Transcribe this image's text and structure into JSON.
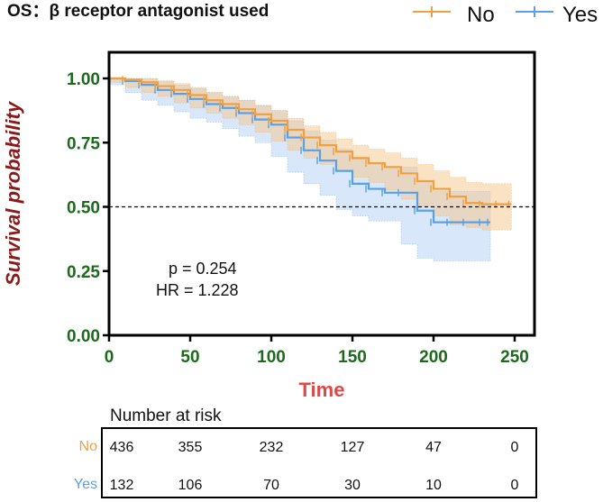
{
  "chart_data": {
    "type": "line",
    "subtype": "kaplan-meier",
    "legend_title": "OS：β receptor antagonist used",
    "xlabel": "Time",
    "ylabel": "Survival probability",
    "xlim": [
      0,
      255
    ],
    "ylim": [
      0,
      1.05
    ],
    "x_ticks": [
      0,
      50,
      100,
      150,
      200,
      250
    ],
    "x_tick_labels": [
      "0",
      "50",
      "100",
      "150",
      "200",
      "250"
    ],
    "y_ticks": [
      0,
      0.25,
      0.5,
      0.75,
      1.0
    ],
    "y_tick_labels": [
      "0.00",
      "0.25",
      "0.50",
      "0.75",
      "1.00"
    ],
    "reference_line": 0.5,
    "annotations": [
      "p = 0.254",
      "HR = 1.228"
    ],
    "colors": {
      "No": "#f0a040",
      "Yes": "#5b9fe6",
      "axis_text": "#1a6b1a",
      "ylabel": "#8b1a1a",
      "xlabel": "#e04848"
    },
    "series": [
      {
        "name": "No",
        "color": "#f0a040",
        "x": [
          0,
          10,
          20,
          30,
          40,
          50,
          60,
          70,
          80,
          90,
          100,
          110,
          120,
          130,
          140,
          150,
          160,
          170,
          180,
          190,
          200,
          210,
          220,
          230,
          240,
          248
        ],
        "y": [
          1.0,
          0.995,
          0.985,
          0.97,
          0.955,
          0.935,
          0.915,
          0.9,
          0.88,
          0.86,
          0.835,
          0.8,
          0.77,
          0.74,
          0.715,
          0.69,
          0.67,
          0.655,
          0.63,
          0.6,
          0.57,
          0.54,
          0.515,
          0.51,
          0.51,
          0.51
        ],
        "ci_upper": [
          1.0,
          1.0,
          1.0,
          0.99,
          0.98,
          0.965,
          0.945,
          0.93,
          0.915,
          0.895,
          0.875,
          0.845,
          0.815,
          0.79,
          0.765,
          0.74,
          0.725,
          0.71,
          0.69,
          0.665,
          0.64,
          0.615,
          0.595,
          0.59,
          0.59,
          0.59
        ],
        "ci_lower": [
          1.0,
          0.985,
          0.965,
          0.945,
          0.93,
          0.905,
          0.885,
          0.865,
          0.845,
          0.82,
          0.79,
          0.755,
          0.72,
          0.69,
          0.665,
          0.64,
          0.615,
          0.595,
          0.565,
          0.53,
          0.5,
          0.465,
          0.43,
          0.42,
          0.41,
          0.41
        ]
      },
      {
        "name": "Yes",
        "color": "#5b9fe6",
        "x": [
          0,
          10,
          20,
          30,
          40,
          50,
          60,
          70,
          80,
          90,
          100,
          110,
          120,
          130,
          140,
          150,
          160,
          170,
          180,
          190,
          200,
          210,
          220,
          230,
          235
        ],
        "y": [
          1.0,
          0.99,
          0.975,
          0.955,
          0.94,
          0.92,
          0.9,
          0.885,
          0.865,
          0.84,
          0.82,
          0.77,
          0.72,
          0.68,
          0.64,
          0.59,
          0.57,
          0.555,
          0.555,
          0.485,
          0.44,
          0.44,
          0.44,
          0.44,
          0.44
        ],
        "ci_upper": [
          1.0,
          1.0,
          1.0,
          0.99,
          0.975,
          0.96,
          0.945,
          0.93,
          0.915,
          0.895,
          0.875,
          0.835,
          0.795,
          0.76,
          0.725,
          0.685,
          0.665,
          0.655,
          0.655,
          0.6,
          0.56,
          0.56,
          0.56,
          0.56,
          0.56
        ],
        "ci_lower": [
          1.0,
          0.975,
          0.945,
          0.915,
          0.895,
          0.87,
          0.845,
          0.83,
          0.805,
          0.775,
          0.75,
          0.695,
          0.635,
          0.59,
          0.545,
          0.49,
          0.465,
          0.445,
          0.445,
          0.355,
          0.3,
          0.29,
          0.29,
          0.29,
          0.29
        ]
      }
    ],
    "risk_table": {
      "title": "Number at risk",
      "time_points": [
        0,
        50,
        100,
        150,
        200,
        250
      ],
      "rows": [
        {
          "name": "No",
          "values": [
            "436",
            "355",
            "232",
            "127",
            "47",
            "0"
          ]
        },
        {
          "name": "Yes",
          "values": [
            "132",
            "106",
            "70",
            "30",
            "10",
            "0"
          ]
        }
      ]
    }
  }
}
